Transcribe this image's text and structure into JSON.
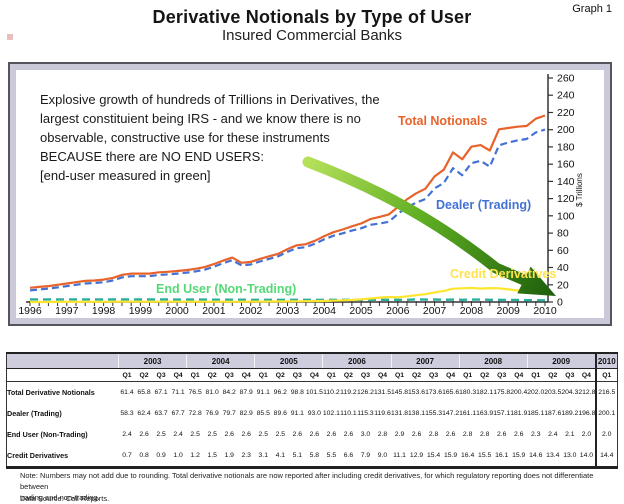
{
  "header": {
    "graph_label": "Graph 1",
    "title": "Derivative Notionals by Type of User",
    "subtitle": "Insured Commercial Banks"
  },
  "chart": {
    "annotation_lines": [
      "Explosive growth of hundreds of Trillions in Derivatives, the",
      "largest constituient being IRS - and we know there is no",
      "observable, constructive use for these instruments",
      "BECAUSE there are NO END USERS:",
      "[end-user measured in green]"
    ],
    "labels": {
      "total": "Total Notionals",
      "dealer": "Dealer (Trading)",
      "enduser": "End User (Non-Trading)",
      "credit": "Credit Derivatives"
    },
    "label_colors": {
      "total": "#E8632C",
      "dealer": "#4472D4",
      "enduser": "#55D977",
      "credit": "#FFE24D"
    },
    "arrow_colors": {
      "light": "#B5E05A",
      "mid": "#5FAE22",
      "dark": "#1D5E0C"
    }
  },
  "chart_data": {
    "type": "line",
    "title": "Derivative Notionals by Type of User",
    "ylabel": "$ Trillions",
    "ylim": [
      0,
      260
    ],
    "y_ticks": [
      0,
      20,
      40,
      60,
      80,
      100,
      120,
      140,
      160,
      180,
      200,
      220,
      240,
      260
    ],
    "x_years": [
      1996,
      1997,
      1998,
      1999,
      2000,
      2001,
      2002,
      2003,
      2004,
      2005,
      2006,
      2007,
      2008,
      2009,
      2010
    ],
    "x_unit": "quarterly",
    "grid": false,
    "legend_position": "inline-labels",
    "series": [
      {
        "id": "total-notionals",
        "name": "Total Notionals",
        "color": "#E8632C",
        "style": "solid",
        "width": 2.2,
        "values": [
          16.5,
          17.5,
          18.5,
          20.0,
          21.5,
          23.0,
          24.5,
          25.0,
          26.0,
          28.0,
          31.5,
          33.0,
          33.0,
          33.0,
          34.5,
          35.0,
          36.0,
          37.0,
          38.5,
          40.5,
          44.0,
          48.0,
          51.5,
          45.5,
          46.5,
          50.0,
          53.0,
          56.0,
          61.4,
          65.8,
          67.1,
          71.1,
          76.5,
          81.0,
          84.2,
          87.9,
          91.1,
          96.2,
          98.8,
          101.5,
          110.2,
          119.2,
          126.2,
          131.5,
          145.8,
          153.6,
          173.6,
          165.6,
          180.3,
          182.1,
          175.8,
          200.4,
          202.0,
          203.5,
          204.3,
          212.8,
          216.5
        ]
      },
      {
        "id": "dealer-trading",
        "name": "Dealer (Trading)",
        "color": "#4472D4",
        "style": "dashed",
        "width": 2.2,
        "dash": "7,4",
        "values": [
          13.5,
          14.5,
          15.5,
          17.0,
          18.5,
          20.0,
          21.5,
          22.0,
          23.0,
          25.0,
          28.5,
          30.0,
          30.0,
          30.0,
          31.5,
          32.0,
          33.0,
          34.0,
          35.5,
          37.5,
          41.0,
          45.0,
          48.5,
          42.5,
          43.5,
          47.0,
          50.0,
          53.0,
          58.3,
          62.4,
          63.7,
          67.7,
          72.8,
          76.9,
          79.7,
          82.9,
          85.5,
          89.6,
          91.1,
          93.0,
          102.1,
          110.1,
          115.3,
          119.6,
          131.8,
          138.1,
          155.3,
          147.2,
          161.1,
          163.9,
          157.1,
          181.9,
          185.1,
          187.6,
          189.2,
          196.8,
          200.1
        ]
      },
      {
        "id": "end-user-non-trading",
        "name": "End User (Non-Trading)",
        "color": "#2BAE9E",
        "style": "dashed",
        "width": 2.4,
        "dash": "8,5",
        "values": [
          3.0,
          3.0,
          3.0,
          3.0,
          3.0,
          3.0,
          3.0,
          3.0,
          2.9,
          2.9,
          2.9,
          2.9,
          2.9,
          2.9,
          2.9,
          2.9,
          2.8,
          2.8,
          2.8,
          2.8,
          2.7,
          2.7,
          2.7,
          2.7,
          2.5,
          2.5,
          2.5,
          2.5,
          2.4,
          2.6,
          2.5,
          2.4,
          2.5,
          2.5,
          2.6,
          2.6,
          2.5,
          2.5,
          2.6,
          2.6,
          2.6,
          2.6,
          3.0,
          2.8,
          2.9,
          2.6,
          2.8,
          2.6,
          2.8,
          2.8,
          2.6,
          2.6,
          2.3,
          2.4,
          2.1,
          2.0,
          2.0
        ]
      },
      {
        "id": "credit-derivatives",
        "name": "Credit Derivatives",
        "color": "#FFE52E",
        "style": "solid",
        "width": 2.2,
        "values": [
          0.0,
          0.0,
          0.0,
          0.1,
          0.1,
          0.1,
          0.2,
          0.2,
          0.2,
          0.3,
          0.3,
          0.4,
          0.3,
          0.3,
          0.3,
          0.3,
          0.3,
          0.4,
          0.4,
          0.4,
          0.4,
          0.4,
          0.4,
          0.4,
          0.5,
          0.5,
          0.6,
          0.6,
          0.7,
          0.8,
          0.9,
          1.0,
          1.2,
          1.5,
          1.9,
          2.3,
          3.1,
          4.1,
          5.1,
          5.8,
          5.5,
          6.6,
          7.9,
          9.0,
          11.1,
          12.9,
          15.4,
          15.9,
          16.4,
          15.5,
          16.1,
          15.9,
          14.6,
          13.4,
          13.0,
          14.0,
          14.4
        ]
      }
    ]
  },
  "table": {
    "years": [
      {
        "label": "2003",
        "quarters": [
          "Q1",
          "Q2",
          "Q3",
          "Q4"
        ]
      },
      {
        "label": "2004",
        "quarters": [
          "Q1",
          "Q2",
          "Q3",
          "Q4"
        ]
      },
      {
        "label": "2005",
        "quarters": [
          "Q1",
          "Q2",
          "Q3",
          "Q4"
        ]
      },
      {
        "label": "2006",
        "quarters": [
          "Q1",
          "Q2",
          "Q3",
          "Q4"
        ]
      },
      {
        "label": "2007",
        "quarters": [
          "Q1",
          "Q2",
          "Q3",
          "Q4"
        ]
      },
      {
        "label": "2008",
        "quarters": [
          "Q1",
          "Q2",
          "Q3",
          "Q4"
        ]
      },
      {
        "label": "2009",
        "quarters": [
          "Q1",
          "Q2",
          "Q3",
          "Q4"
        ]
      },
      {
        "label": "2010",
        "quarters": [
          "Q1"
        ]
      }
    ],
    "rows": [
      {
        "label": "Total Derivative Notionals",
        "values": [
          "61.4",
          "65.8",
          "67.1",
          "71.1",
          "76.5",
          "81.0",
          "84.2",
          "87.9",
          "91.1",
          "96.2",
          "98.8",
          "101.5",
          "110.2",
          "119.2",
          "126.2",
          "131.5",
          "145.8",
          "153.6",
          "173.6",
          "165.6",
          "180.3",
          "182.1",
          "175.8",
          "200.4",
          "202.0",
          "203.5",
          "204.3",
          "212.8",
          "216.5"
        ]
      },
      {
        "label": "Dealer (Trading)",
        "values": [
          "58.3",
          "62.4",
          "63.7",
          "67.7",
          "72.8",
          "76.9",
          "79.7",
          "82.9",
          "85.5",
          "89.6",
          "91.1",
          "93.0",
          "102.1",
          "110.1",
          "115.3",
          "119.6",
          "131.8",
          "138.1",
          "155.3",
          "147.2",
          "161.1",
          "163.9",
          "157.1",
          "181.9",
          "185.1",
          "187.6",
          "189.2",
          "196.8",
          "200.1"
        ]
      },
      {
        "label": "End User (Non-Trading)",
        "values": [
          "2.4",
          "2.6",
          "2.5",
          "2.4",
          "2.5",
          "2.5",
          "2.6",
          "2.6",
          "2.5",
          "2.5",
          "2.6",
          "2.6",
          "2.6",
          "2.6",
          "3.0",
          "2.8",
          "2.9",
          "2.6",
          "2.8",
          "2.6",
          "2.8",
          "2.8",
          "2.6",
          "2.6",
          "2.3",
          "2.4",
          "2.1",
          "2.0",
          "2.0"
        ]
      },
      {
        "label": "Credit Derivatives",
        "values": [
          "0.7",
          "0.8",
          "0.9",
          "1.0",
          "1.2",
          "1.5",
          "1.9",
          "2.3",
          "3.1",
          "4.1",
          "5.1",
          "5.8",
          "5.5",
          "6.6",
          "7.9",
          "9.0",
          "11.1",
          "12.9",
          "15.4",
          "15.9",
          "16.4",
          "15.5",
          "16.1",
          "15.9",
          "14.6",
          "13.4",
          "13.0",
          "14.0",
          "14.4"
        ]
      }
    ]
  },
  "notes": {
    "line1": "Note: Numbers may not add due to rounding. Total derivative notionals are now reported after including credit derivatives, for which regulatory reporting does not differentiate between",
    "line2": "trading and non-trading.",
    "datasource": "Data Source: Call Reports."
  }
}
